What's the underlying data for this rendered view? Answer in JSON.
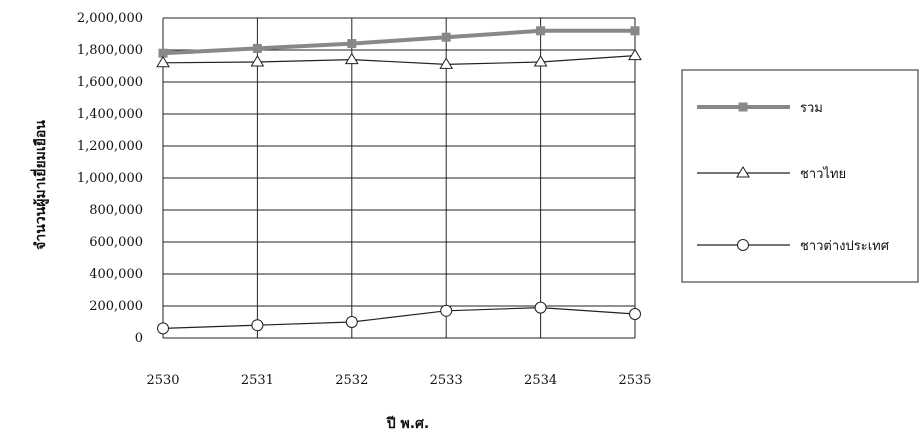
{
  "chart_data": {
    "type": "line",
    "title": "",
    "xlabel": "ปี พ.ศ.",
    "ylabel": "จำนวนผู้มาเยี่ยมเยือน",
    "x": [
      "2530",
      "2531",
      "2532",
      "2533",
      "2534",
      "2535"
    ],
    "ylim": [
      0,
      2000000
    ],
    "yticks": [
      "0",
      "200,000",
      "400,000",
      "600,000",
      "800,000",
      "1,000,000",
      "1,200,000",
      "1,400,000",
      "1,600,000",
      "1,800,000",
      "2,000,000"
    ],
    "grid": true,
    "legend_position": "right",
    "series": [
      {
        "name": "รวม",
        "values": [
          1780000,
          1810000,
          1840000,
          1880000,
          1920000,
          1920000
        ],
        "marker": "square",
        "color": "#888888"
      },
      {
        "name": "ชาวไทย",
        "values": [
          1720000,
          1725000,
          1740000,
          1710000,
          1725000,
          1765000
        ],
        "marker": "triangle",
        "color": "#222222"
      },
      {
        "name": "ชาวต่างประเทศ",
        "values": [
          60000,
          80000,
          100000,
          170000,
          190000,
          150000
        ],
        "marker": "circle",
        "color": "#222222"
      }
    ]
  }
}
